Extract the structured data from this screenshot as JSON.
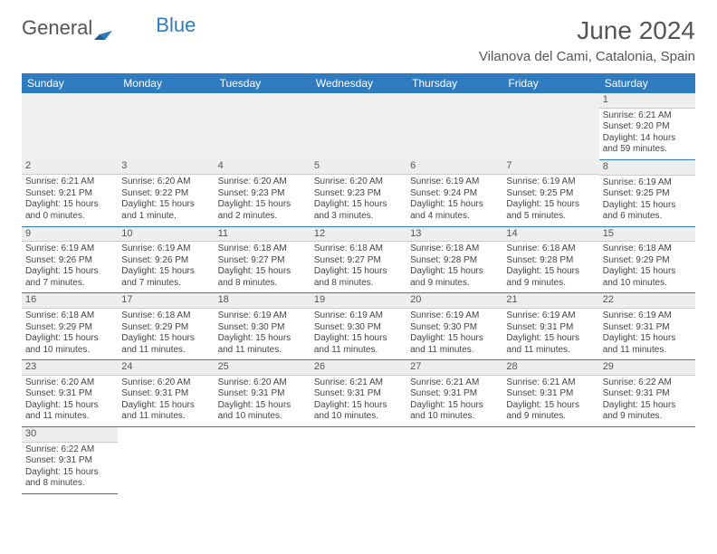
{
  "logo": {
    "text1": "General",
    "text2": "Blue"
  },
  "title": "June 2024",
  "location": "Vilanova del Cami, Catalonia, Spain",
  "header_bg": "#2f7bbf",
  "header_text_color": "#ffffff",
  "rule_color": "#2f7bbf",
  "daynum_bg": "#eeeeee",
  "weekdays": [
    "Sunday",
    "Monday",
    "Tuesday",
    "Wednesday",
    "Thursday",
    "Friday",
    "Saturday"
  ],
  "weeks": [
    [
      null,
      null,
      null,
      null,
      null,
      null,
      {
        "n": "1",
        "sunrise": "Sunrise: 6:21 AM",
        "sunset": "Sunset: 9:20 PM",
        "daylight": "Daylight: 14 hours and 59 minutes."
      }
    ],
    [
      {
        "n": "2",
        "sunrise": "Sunrise: 6:21 AM",
        "sunset": "Sunset: 9:21 PM",
        "daylight": "Daylight: 15 hours and 0 minutes."
      },
      {
        "n": "3",
        "sunrise": "Sunrise: 6:20 AM",
        "sunset": "Sunset: 9:22 PM",
        "daylight": "Daylight: 15 hours and 1 minute."
      },
      {
        "n": "4",
        "sunrise": "Sunrise: 6:20 AM",
        "sunset": "Sunset: 9:23 PM",
        "daylight": "Daylight: 15 hours and 2 minutes."
      },
      {
        "n": "5",
        "sunrise": "Sunrise: 6:20 AM",
        "sunset": "Sunset: 9:23 PM",
        "daylight": "Daylight: 15 hours and 3 minutes."
      },
      {
        "n": "6",
        "sunrise": "Sunrise: 6:19 AM",
        "sunset": "Sunset: 9:24 PM",
        "daylight": "Daylight: 15 hours and 4 minutes."
      },
      {
        "n": "7",
        "sunrise": "Sunrise: 6:19 AM",
        "sunset": "Sunset: 9:25 PM",
        "daylight": "Daylight: 15 hours and 5 minutes."
      },
      {
        "n": "8",
        "sunrise": "Sunrise: 6:19 AM",
        "sunset": "Sunset: 9:25 PM",
        "daylight": "Daylight: 15 hours and 6 minutes."
      }
    ],
    [
      {
        "n": "9",
        "sunrise": "Sunrise: 6:19 AM",
        "sunset": "Sunset: 9:26 PM",
        "daylight": "Daylight: 15 hours and 7 minutes."
      },
      {
        "n": "10",
        "sunrise": "Sunrise: 6:19 AM",
        "sunset": "Sunset: 9:26 PM",
        "daylight": "Daylight: 15 hours and 7 minutes."
      },
      {
        "n": "11",
        "sunrise": "Sunrise: 6:18 AM",
        "sunset": "Sunset: 9:27 PM",
        "daylight": "Daylight: 15 hours and 8 minutes."
      },
      {
        "n": "12",
        "sunrise": "Sunrise: 6:18 AM",
        "sunset": "Sunset: 9:27 PM",
        "daylight": "Daylight: 15 hours and 8 minutes."
      },
      {
        "n": "13",
        "sunrise": "Sunrise: 6:18 AM",
        "sunset": "Sunset: 9:28 PM",
        "daylight": "Daylight: 15 hours and 9 minutes."
      },
      {
        "n": "14",
        "sunrise": "Sunrise: 6:18 AM",
        "sunset": "Sunset: 9:28 PM",
        "daylight": "Daylight: 15 hours and 9 minutes."
      },
      {
        "n": "15",
        "sunrise": "Sunrise: 6:18 AM",
        "sunset": "Sunset: 9:29 PM",
        "daylight": "Daylight: 15 hours and 10 minutes."
      }
    ],
    [
      {
        "n": "16",
        "sunrise": "Sunrise: 6:18 AM",
        "sunset": "Sunset: 9:29 PM",
        "daylight": "Daylight: 15 hours and 10 minutes."
      },
      {
        "n": "17",
        "sunrise": "Sunrise: 6:18 AM",
        "sunset": "Sunset: 9:29 PM",
        "daylight": "Daylight: 15 hours and 11 minutes."
      },
      {
        "n": "18",
        "sunrise": "Sunrise: 6:19 AM",
        "sunset": "Sunset: 9:30 PM",
        "daylight": "Daylight: 15 hours and 11 minutes."
      },
      {
        "n": "19",
        "sunrise": "Sunrise: 6:19 AM",
        "sunset": "Sunset: 9:30 PM",
        "daylight": "Daylight: 15 hours and 11 minutes."
      },
      {
        "n": "20",
        "sunrise": "Sunrise: 6:19 AM",
        "sunset": "Sunset: 9:30 PM",
        "daylight": "Daylight: 15 hours and 11 minutes."
      },
      {
        "n": "21",
        "sunrise": "Sunrise: 6:19 AM",
        "sunset": "Sunset: 9:31 PM",
        "daylight": "Daylight: 15 hours and 11 minutes."
      },
      {
        "n": "22",
        "sunrise": "Sunrise: 6:19 AM",
        "sunset": "Sunset: 9:31 PM",
        "daylight": "Daylight: 15 hours and 11 minutes."
      }
    ],
    [
      {
        "n": "23",
        "sunrise": "Sunrise: 6:20 AM",
        "sunset": "Sunset: 9:31 PM",
        "daylight": "Daylight: 15 hours and 11 minutes."
      },
      {
        "n": "24",
        "sunrise": "Sunrise: 6:20 AM",
        "sunset": "Sunset: 9:31 PM",
        "daylight": "Daylight: 15 hours and 11 minutes."
      },
      {
        "n": "25",
        "sunrise": "Sunrise: 6:20 AM",
        "sunset": "Sunset: 9:31 PM",
        "daylight": "Daylight: 15 hours and 10 minutes."
      },
      {
        "n": "26",
        "sunrise": "Sunrise: 6:21 AM",
        "sunset": "Sunset: 9:31 PM",
        "daylight": "Daylight: 15 hours and 10 minutes."
      },
      {
        "n": "27",
        "sunrise": "Sunrise: 6:21 AM",
        "sunset": "Sunset: 9:31 PM",
        "daylight": "Daylight: 15 hours and 10 minutes."
      },
      {
        "n": "28",
        "sunrise": "Sunrise: 6:21 AM",
        "sunset": "Sunset: 9:31 PM",
        "daylight": "Daylight: 15 hours and 9 minutes."
      },
      {
        "n": "29",
        "sunrise": "Sunrise: 6:22 AM",
        "sunset": "Sunset: 9:31 PM",
        "daylight": "Daylight: 15 hours and 9 minutes."
      }
    ],
    [
      {
        "n": "30",
        "sunrise": "Sunrise: 6:22 AM",
        "sunset": "Sunset: 9:31 PM",
        "daylight": "Daylight: 15 hours and 8 minutes."
      },
      null,
      null,
      null,
      null,
      null,
      null
    ]
  ]
}
